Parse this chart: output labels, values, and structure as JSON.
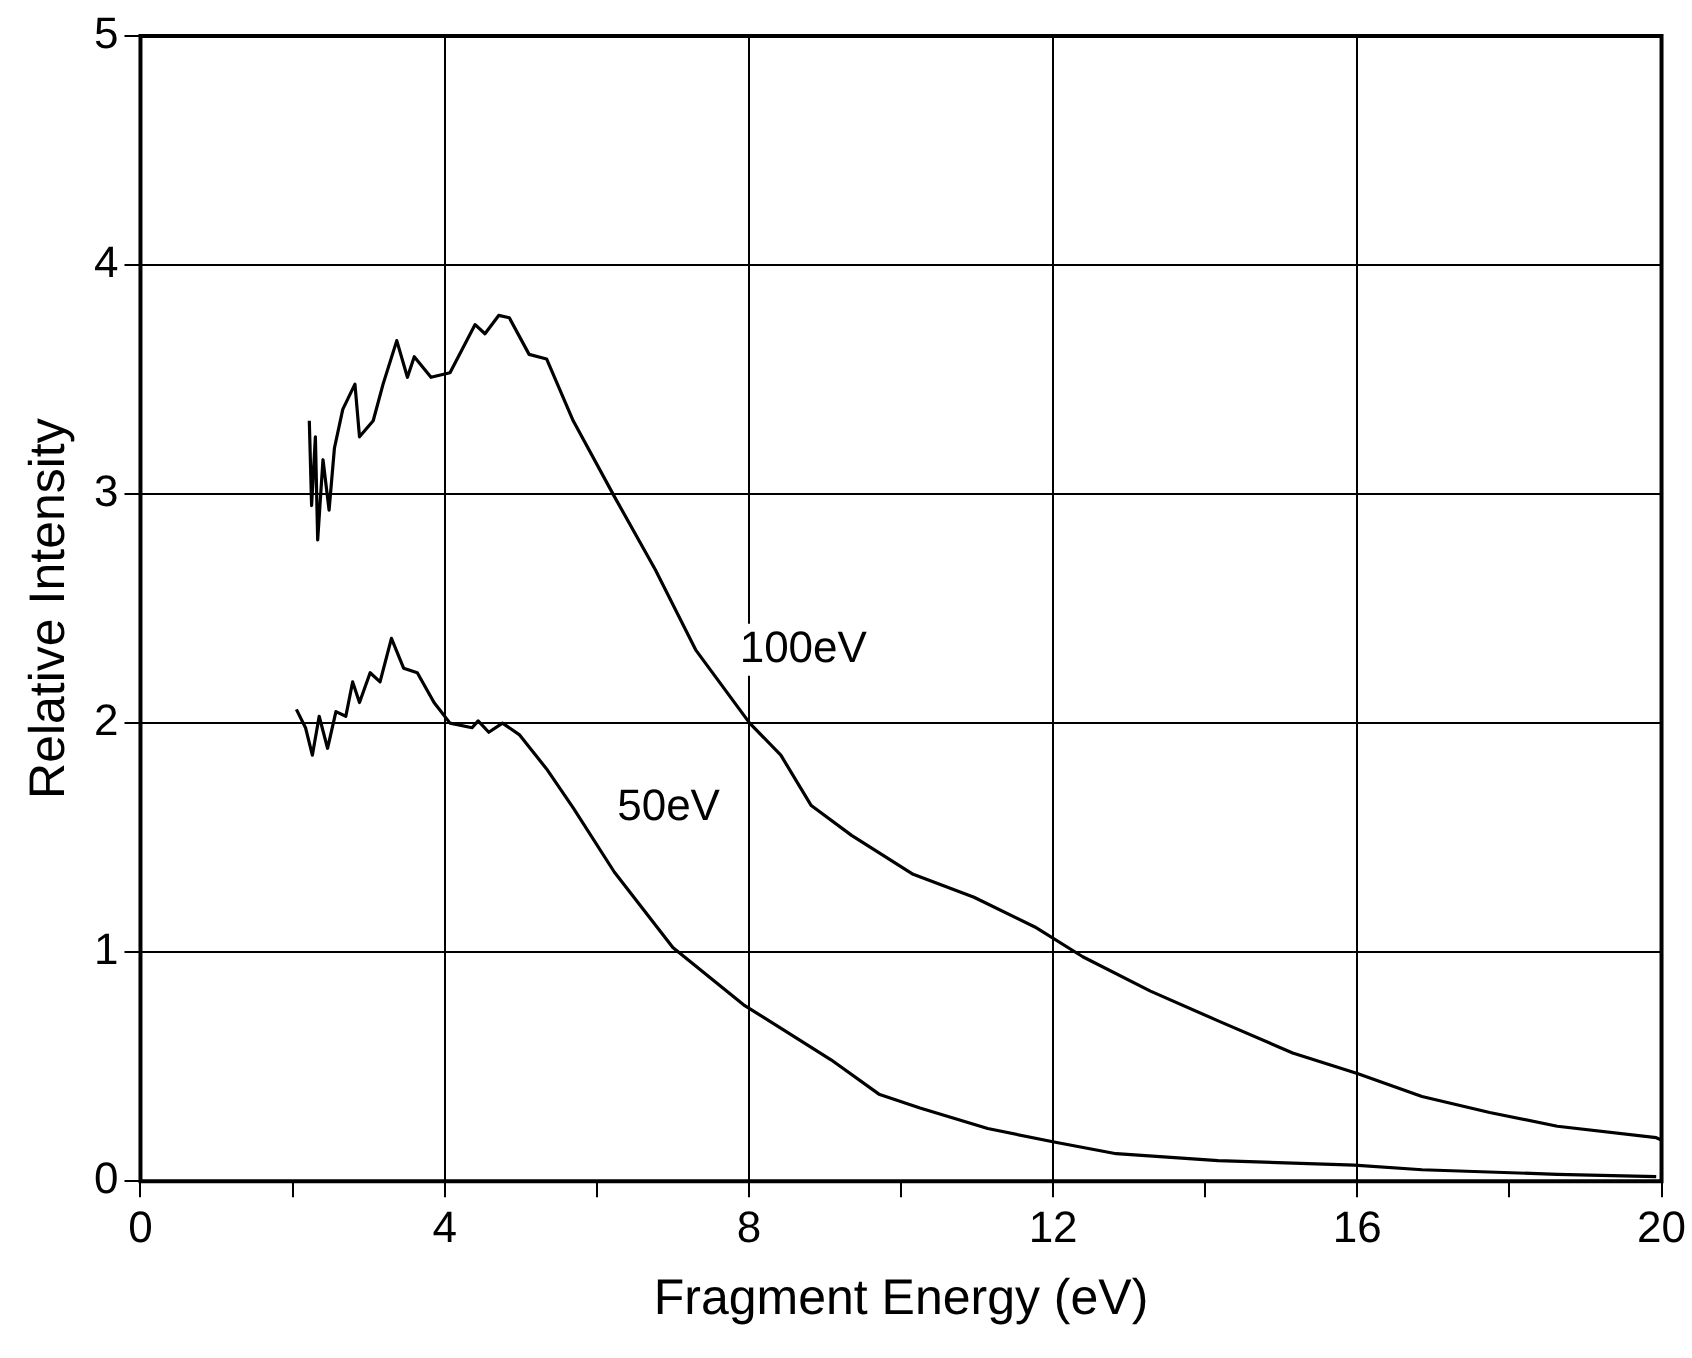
{
  "chart_data": {
    "type": "line",
    "xlabel": "Fragment Energy (eV)",
    "ylabel": "Relative Intensity",
    "xlim": [
      0,
      20
    ],
    "xticks": [
      0,
      {
        "value": 2,
        "label": null
      },
      4,
      {
        "value": 6,
        "label": null
      },
      8,
      {
        "value": 10,
        "label": null
      },
      12,
      {
        "value": 14,
        "label": null
      },
      16,
      {
        "value": 18,
        "label": null
      },
      20
    ],
    "ylim": [
      0,
      5
    ],
    "yticks": [
      0,
      1,
      2,
      3,
      4,
      5
    ],
    "grid": true,
    "legend": false,
    "marker": "none",
    "line_style": "solid",
    "series": [
      {
        "name": "100eV",
        "color": "#000000",
        "x": [
          2.22,
          2.25,
          2.3,
          2.33,
          2.4,
          2.48,
          2.55,
          2.66,
          2.82,
          2.88,
          3.06,
          3.19,
          3.37,
          3.51,
          3.6,
          3.82,
          4.07,
          4.4,
          4.53,
          4.71,
          4.85,
          5.11,
          5.34,
          5.69,
          6.23,
          6.77,
          7.3,
          8.01,
          8.42,
          8.82,
          9.35,
          10.16,
          10.96,
          11.76,
          12.39,
          13.28,
          14.17,
          15.15,
          16.0,
          16.85,
          17.74,
          18.63,
          19.93,
          20
        ],
        "values": [
          3.32,
          2.95,
          3.25,
          2.8,
          3.15,
          2.93,
          3.2,
          3.37,
          3.48,
          3.25,
          3.32,
          3.48,
          3.67,
          3.51,
          3.6,
          3.51,
          3.53,
          3.74,
          3.7,
          3.78,
          3.77,
          3.61,
          3.59,
          3.32,
          2.99,
          2.67,
          2.32,
          2.0,
          1.86,
          1.64,
          1.51,
          1.34,
          1.24,
          1.11,
          0.98,
          0.83,
          0.7,
          0.56,
          0.47,
          0.37,
          0.3,
          0.24,
          0.19,
          0.18
        ]
      },
      {
        "name": "50eV",
        "color": "#000000",
        "x": [
          2.05,
          2.17,
          2.26,
          2.35,
          2.46,
          2.57,
          2.7,
          2.79,
          2.88,
          3.02,
          3.15,
          3.3,
          3.46,
          3.64,
          3.86,
          4.07,
          4.36,
          4.44,
          4.58,
          4.76,
          4.98,
          5.34,
          5.69,
          6.23,
          7.0,
          7.93,
          8.46,
          9.08,
          9.71,
          10.25,
          11.14,
          12.03,
          12.83,
          14.17,
          15.96,
          16.85,
          18.63,
          19.93
        ],
        "values": [
          2.06,
          1.98,
          1.86,
          2.03,
          1.89,
          2.05,
          2.03,
          2.18,
          2.09,
          2.22,
          2.18,
          2.37,
          2.24,
          2.22,
          2.09,
          2.0,
          1.98,
          2.01,
          1.96,
          2.0,
          1.95,
          1.8,
          1.63,
          1.35,
          1.02,
          0.77,
          0.66,
          0.53,
          0.38,
          0.32,
          0.23,
          0.17,
          0.12,
          0.09,
          0.07,
          0.05,
          0.03,
          0.02
        ]
      }
    ]
  }
}
